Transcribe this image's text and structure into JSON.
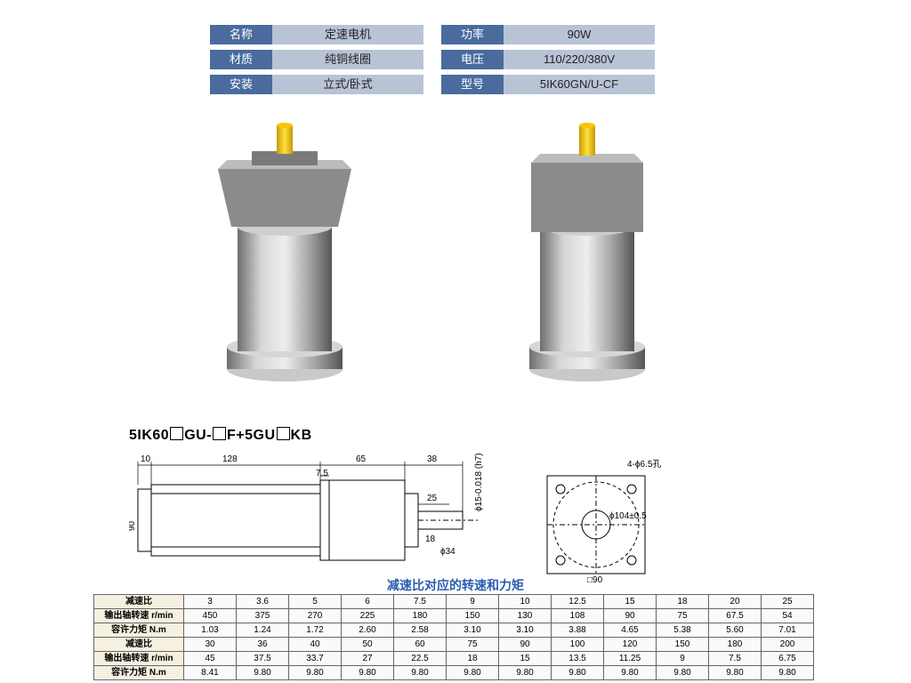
{
  "specs": {
    "left": [
      {
        "label": "名称",
        "value": "定速电机"
      },
      {
        "label": "材质",
        "value": "纯铜线圈"
      },
      {
        "label": "安装",
        "value": "立式/卧式"
      }
    ],
    "right": [
      {
        "label": "功率",
        "value": "90W"
      },
      {
        "label": "电压",
        "value": "110/220/380V"
      },
      {
        "label": "型号",
        "value": "5IK60GN/U-CF"
      }
    ],
    "label_bg": "#4a6b9e",
    "value_bg": "#b8c3d6"
  },
  "motor_render": {
    "body_light": "#d6d6d6",
    "body_mid": "#a8a8a8",
    "body_dark": "#6e6e6e",
    "shaft_color": "#f5c400",
    "shaft_dark": "#c79a00",
    "gearbox_color": "#8b8b8b",
    "gearbox_light": "#bcbcbc",
    "base_color": "#c9c9c9"
  },
  "model_string": {
    "parts": [
      "5IK60",
      "GU-",
      "F+5GU",
      "KB"
    ]
  },
  "drawing": {
    "dims": {
      "d10": "10",
      "d128": "128",
      "d75": "7.5",
      "d65": "65",
      "d38": "38",
      "d25": "25",
      "d18": "18",
      "d34": "ϕ34",
      "d90": "90",
      "sq90": "□90",
      "phi15": "ϕ15-0.018 (h7)",
      "holes": "4-ϕ6.5孔",
      "phi104": "ϕ104±0.5"
    }
  },
  "table": {
    "title": "减速比对应的转速和力矩",
    "title_color": "#2a5db0",
    "rowhead_bg": "#f5f0e0",
    "headers": [
      "减速比",
      "输出轴转速 r/min",
      "容许力矩 N.m",
      "减速比",
      "输出轴转速 r/min",
      "容许力矩 N.m"
    ],
    "rows": [
      [
        "3",
        "3.6",
        "5",
        "6",
        "7.5",
        "9",
        "10",
        "12.5",
        "15",
        "18",
        "20",
        "25"
      ],
      [
        "450",
        "375",
        "270",
        "225",
        "180",
        "150",
        "130",
        "108",
        "90",
        "75",
        "67.5",
        "54"
      ],
      [
        "1.03",
        "1.24",
        "1.72",
        "2.60",
        "2.58",
        "3.10",
        "3.10",
        "3.88",
        "4.65",
        "5.38",
        "5.60",
        "7.01"
      ],
      [
        "30",
        "36",
        "40",
        "50",
        "60",
        "75",
        "90",
        "100",
        "120",
        "150",
        "180",
        "200"
      ],
      [
        "45",
        "37.5",
        "33.7",
        "27",
        "22.5",
        "18",
        "15",
        "13.5",
        "11.25",
        "9",
        "7.5",
        "6.75"
      ],
      [
        "8.41",
        "9.80",
        "9.80",
        "9.80",
        "9.80",
        "9.80",
        "9.80",
        "9.80",
        "9.80",
        "9.80",
        "9.80",
        "9.80"
      ]
    ]
  }
}
